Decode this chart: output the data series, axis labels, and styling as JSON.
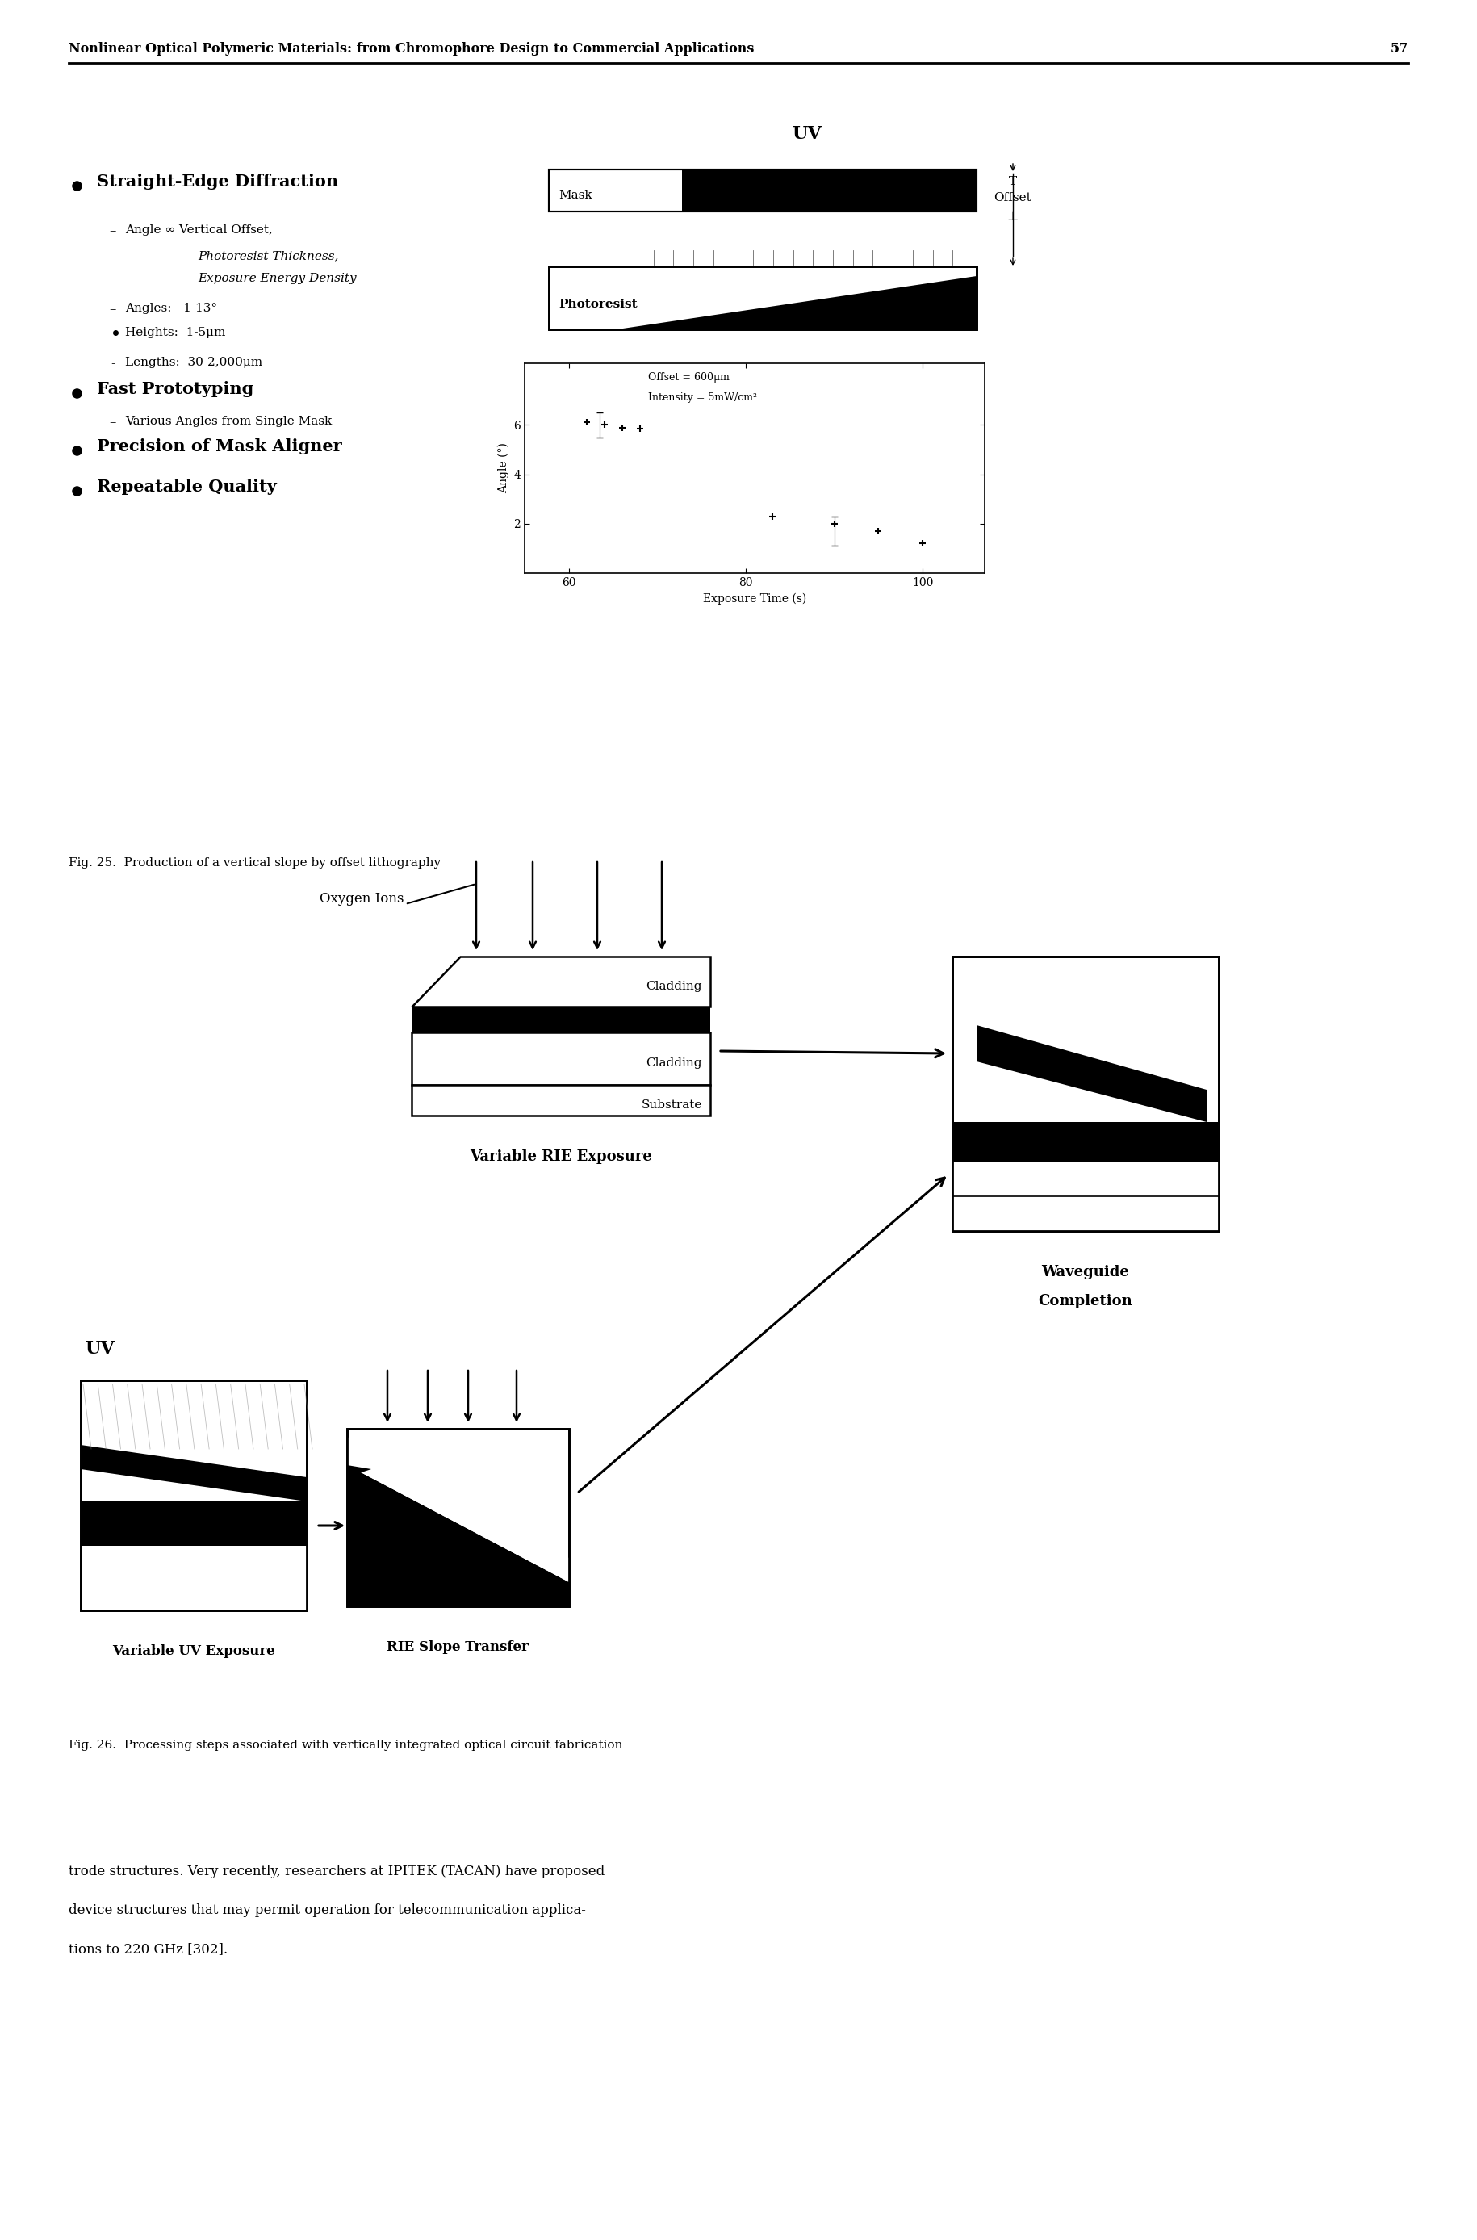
{
  "header_text": "Nonlinear Optical Polymeric Materials: from Chromophore Design to Commercial Applications",
  "header_page": "57",
  "bg_color": "#ffffff",
  "fig25_caption": "Fig. 25.  Production of a vertical slope by offset lithography",
  "fig26_caption": "Fig. 26.  Processing steps associated with vertically integrated optical circuit fabrication",
  "bullet1": "Straight-Edge Diffraction",
  "sub1a": "Angle ∞ Vertical Offset,",
  "sub1b": "Photoresist Thickness,",
  "sub1c": "Exposure Energy Density",
  "sub1d": "Angles:   1-13°",
  "sub1e": "Heights:  1-5μm",
  "sub1f": "Lengths:  30-2,000μm",
  "bullet2": "Fast Prototyping",
  "sub2a": "Various Angles from Single Mask",
  "bullet3": "Precision of Mask Aligner",
  "bullet4": "Repeatable Quality",
  "uv_label": "UV",
  "mask_label": "Mask",
  "photoresist_label": "Photoresist",
  "t_label": "T",
  "offset_label": "Offset",
  "perp_label": "⊥",
  "plot_xlabel": "Exposure Time (s)",
  "plot_ylabel": "Angle (°)",
  "plot_annotation1": "Offset = 600μm",
  "plot_annotation2": "Intensity = 5mW/cm²",
  "fig26_uv": "UV",
  "fig26_oxygen": "Oxygen Ions",
  "fig26_cladding1": "Cladding",
  "fig26_cladding2": "Cladding",
  "fig26_substrate": "Substrate",
  "fig26_variable_rie": "Variable RIE Exposure",
  "fig26_variable_uv": "Variable UV Exposure",
  "fig26_rie_slope": "RIE Slope Transfer",
  "fig26_waveguide1": "Waveguide",
  "fig26_waveguide2": "Completion",
  "body_text_line1": "trode structures. Very recently, researchers at IPITEK (TACAN) have proposed",
  "body_text_line2": "device structures that may permit operation for telecommunication applica-",
  "body_text_line3": "tions to 220 GHz [302].",
  "fig_width": 18.3,
  "fig_height": 27.75
}
